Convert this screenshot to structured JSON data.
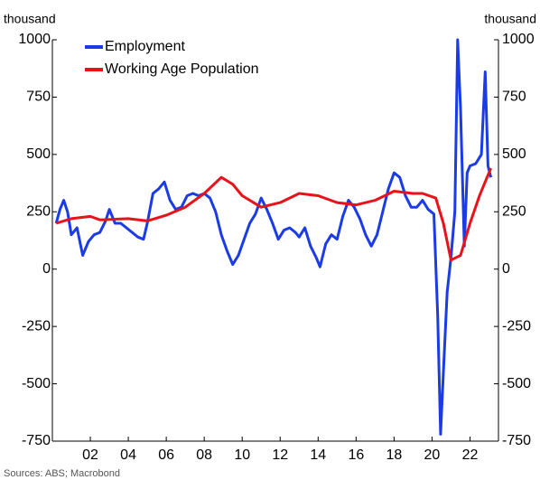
{
  "chart_data": {
    "type": "line",
    "y_label": "thousand",
    "y2_label": "thousand",
    "source": "Sources: ABS; Macrobond",
    "xlim": [
      2000,
      2023.5
    ],
    "xticks": [
      {
        "value": 2002,
        "label": "02"
      },
      {
        "value": 2004,
        "label": "04"
      },
      {
        "value": 2006,
        "label": "06"
      },
      {
        "value": 2008,
        "label": "08"
      },
      {
        "value": 2010,
        "label": "10"
      },
      {
        "value": 2012,
        "label": "12"
      },
      {
        "value": 2014,
        "label": "14"
      },
      {
        "value": 2016,
        "label": "16"
      },
      {
        "value": 2018,
        "label": "18"
      },
      {
        "value": 2020,
        "label": "20"
      },
      {
        "value": 2022,
        "label": "22"
      }
    ],
    "ylim": [
      -750,
      1000
    ],
    "yticks": [
      -750,
      -500,
      -250,
      0,
      250,
      500,
      750,
      1000
    ],
    "y2lim": [
      -750,
      1000
    ],
    "y2ticks": [
      -750,
      -500,
      -250,
      0,
      250,
      500,
      750,
      1000
    ],
    "legend": "upper-left",
    "series": [
      {
        "name": "Employment",
        "color": "#1a3be6",
        "x": [
          2000.2,
          2000.4,
          2000.6,
          2000.8,
          2001.0,
          2001.3,
          2001.6,
          2001.9,
          2002.2,
          2002.5,
          2002.8,
          2003.0,
          2003.3,
          2003.6,
          2003.9,
          2004.2,
          2004.5,
          2004.8,
          2005.0,
          2005.3,
          2005.6,
          2005.9,
          2006.2,
          2006.5,
          2006.8,
          2007.1,
          2007.4,
          2007.7,
          2008.0,
          2008.3,
          2008.6,
          2008.9,
          2009.2,
          2009.5,
          2009.8,
          2010.1,
          2010.4,
          2010.7,
          2011.0,
          2011.3,
          2011.6,
          2011.9,
          2012.2,
          2012.5,
          2012.8,
          2013.0,
          2013.3,
          2013.6,
          2013.9,
          2014.1,
          2014.4,
          2014.7,
          2015.0,
          2015.3,
          2015.6,
          2015.9,
          2016.2,
          2016.5,
          2016.8,
          2017.1,
          2017.4,
          2017.7,
          2018.0,
          2018.3,
          2018.6,
          2018.9,
          2019.2,
          2019.5,
          2019.8,
          2020.1,
          2020.3,
          2020.45,
          2020.6,
          2020.8,
          2021.0,
          2021.2,
          2021.35,
          2021.5,
          2021.7,
          2021.85,
          2022.0,
          2022.3,
          2022.6,
          2022.8,
          2022.95,
          2023.1
        ],
        "values": [
          200,
          260,
          300,
          250,
          150,
          180,
          60,
          120,
          150,
          160,
          210,
          260,
          200,
          200,
          180,
          160,
          140,
          130,
          200,
          330,
          350,
          380,
          300,
          260,
          270,
          320,
          330,
          320,
          330,
          310,
          250,
          150,
          80,
          20,
          60,
          130,
          200,
          240,
          310,
          260,
          200,
          130,
          170,
          180,
          160,
          140,
          180,
          100,
          50,
          10,
          110,
          150,
          130,
          230,
          300,
          270,
          220,
          150,
          100,
          150,
          250,
          350,
          420,
          400,
          320,
          270,
          270,
          300,
          260,
          240,
          -200,
          -720,
          -450,
          -100,
          50,
          250,
          1000,
          700,
          100,
          420,
          450,
          460,
          500,
          860,
          450,
          400
        ]
      },
      {
        "name": "Working Age Population",
        "color": "#e8121a",
        "x": [
          2000.2,
          2001,
          2002,
          2002.5,
          2004,
          2005,
          2006,
          2007,
          2008,
          2008.9,
          2009.5,
          2010,
          2011,
          2012,
          2013,
          2014,
          2015,
          2016,
          2017,
          2018,
          2019,
          2019.5,
          2020.2,
          2020.6,
          2021,
          2021.5,
          2022,
          2022.5,
          2023.1
        ],
        "values": [
          200,
          220,
          230,
          215,
          220,
          210,
          235,
          270,
          330,
          400,
          370,
          320,
          270,
          290,
          330,
          320,
          290,
          280,
          300,
          340,
          330,
          330,
          310,
          200,
          40,
          60,
          200,
          320,
          440
        ]
      }
    ]
  }
}
